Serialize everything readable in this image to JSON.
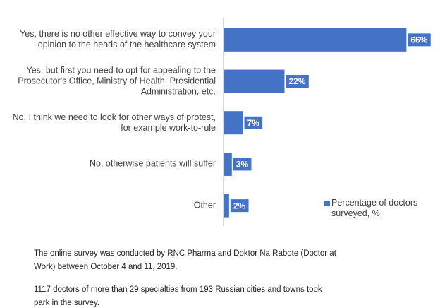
{
  "chart_data": {
    "type": "bar",
    "orientation": "horizontal",
    "categories": [
      "Yes, there is no other effective way to convey your opinion to the heads of the healthcare system",
      "Yes, but first you need to opt for appealing to the Prosecutor's Office, Ministry of Health, Presidential Administration, etc.",
      "No, I think we need to look for other ways of protest, for example work-to-rule",
      "No, otherwise patients will suffer",
      "Other"
    ],
    "series": [
      {
        "name": "Percentage of doctors surveyed, %",
        "color": "#4472c4",
        "values": [
          66,
          22,
          7,
          3,
          2
        ],
        "value_labels": [
          "66%",
          "22%",
          "7%",
          "3%",
          "2%"
        ]
      }
    ],
    "legend": "right"
  },
  "notes": [
    "The online survey was conducted by RNC Pharma and Doktor Na Rabote (Doctor at Work) between October 4 and 11, 2019.",
    "1117 doctors of more than 29 specialties from 193 Russian cities and towns took park in the survey."
  ]
}
